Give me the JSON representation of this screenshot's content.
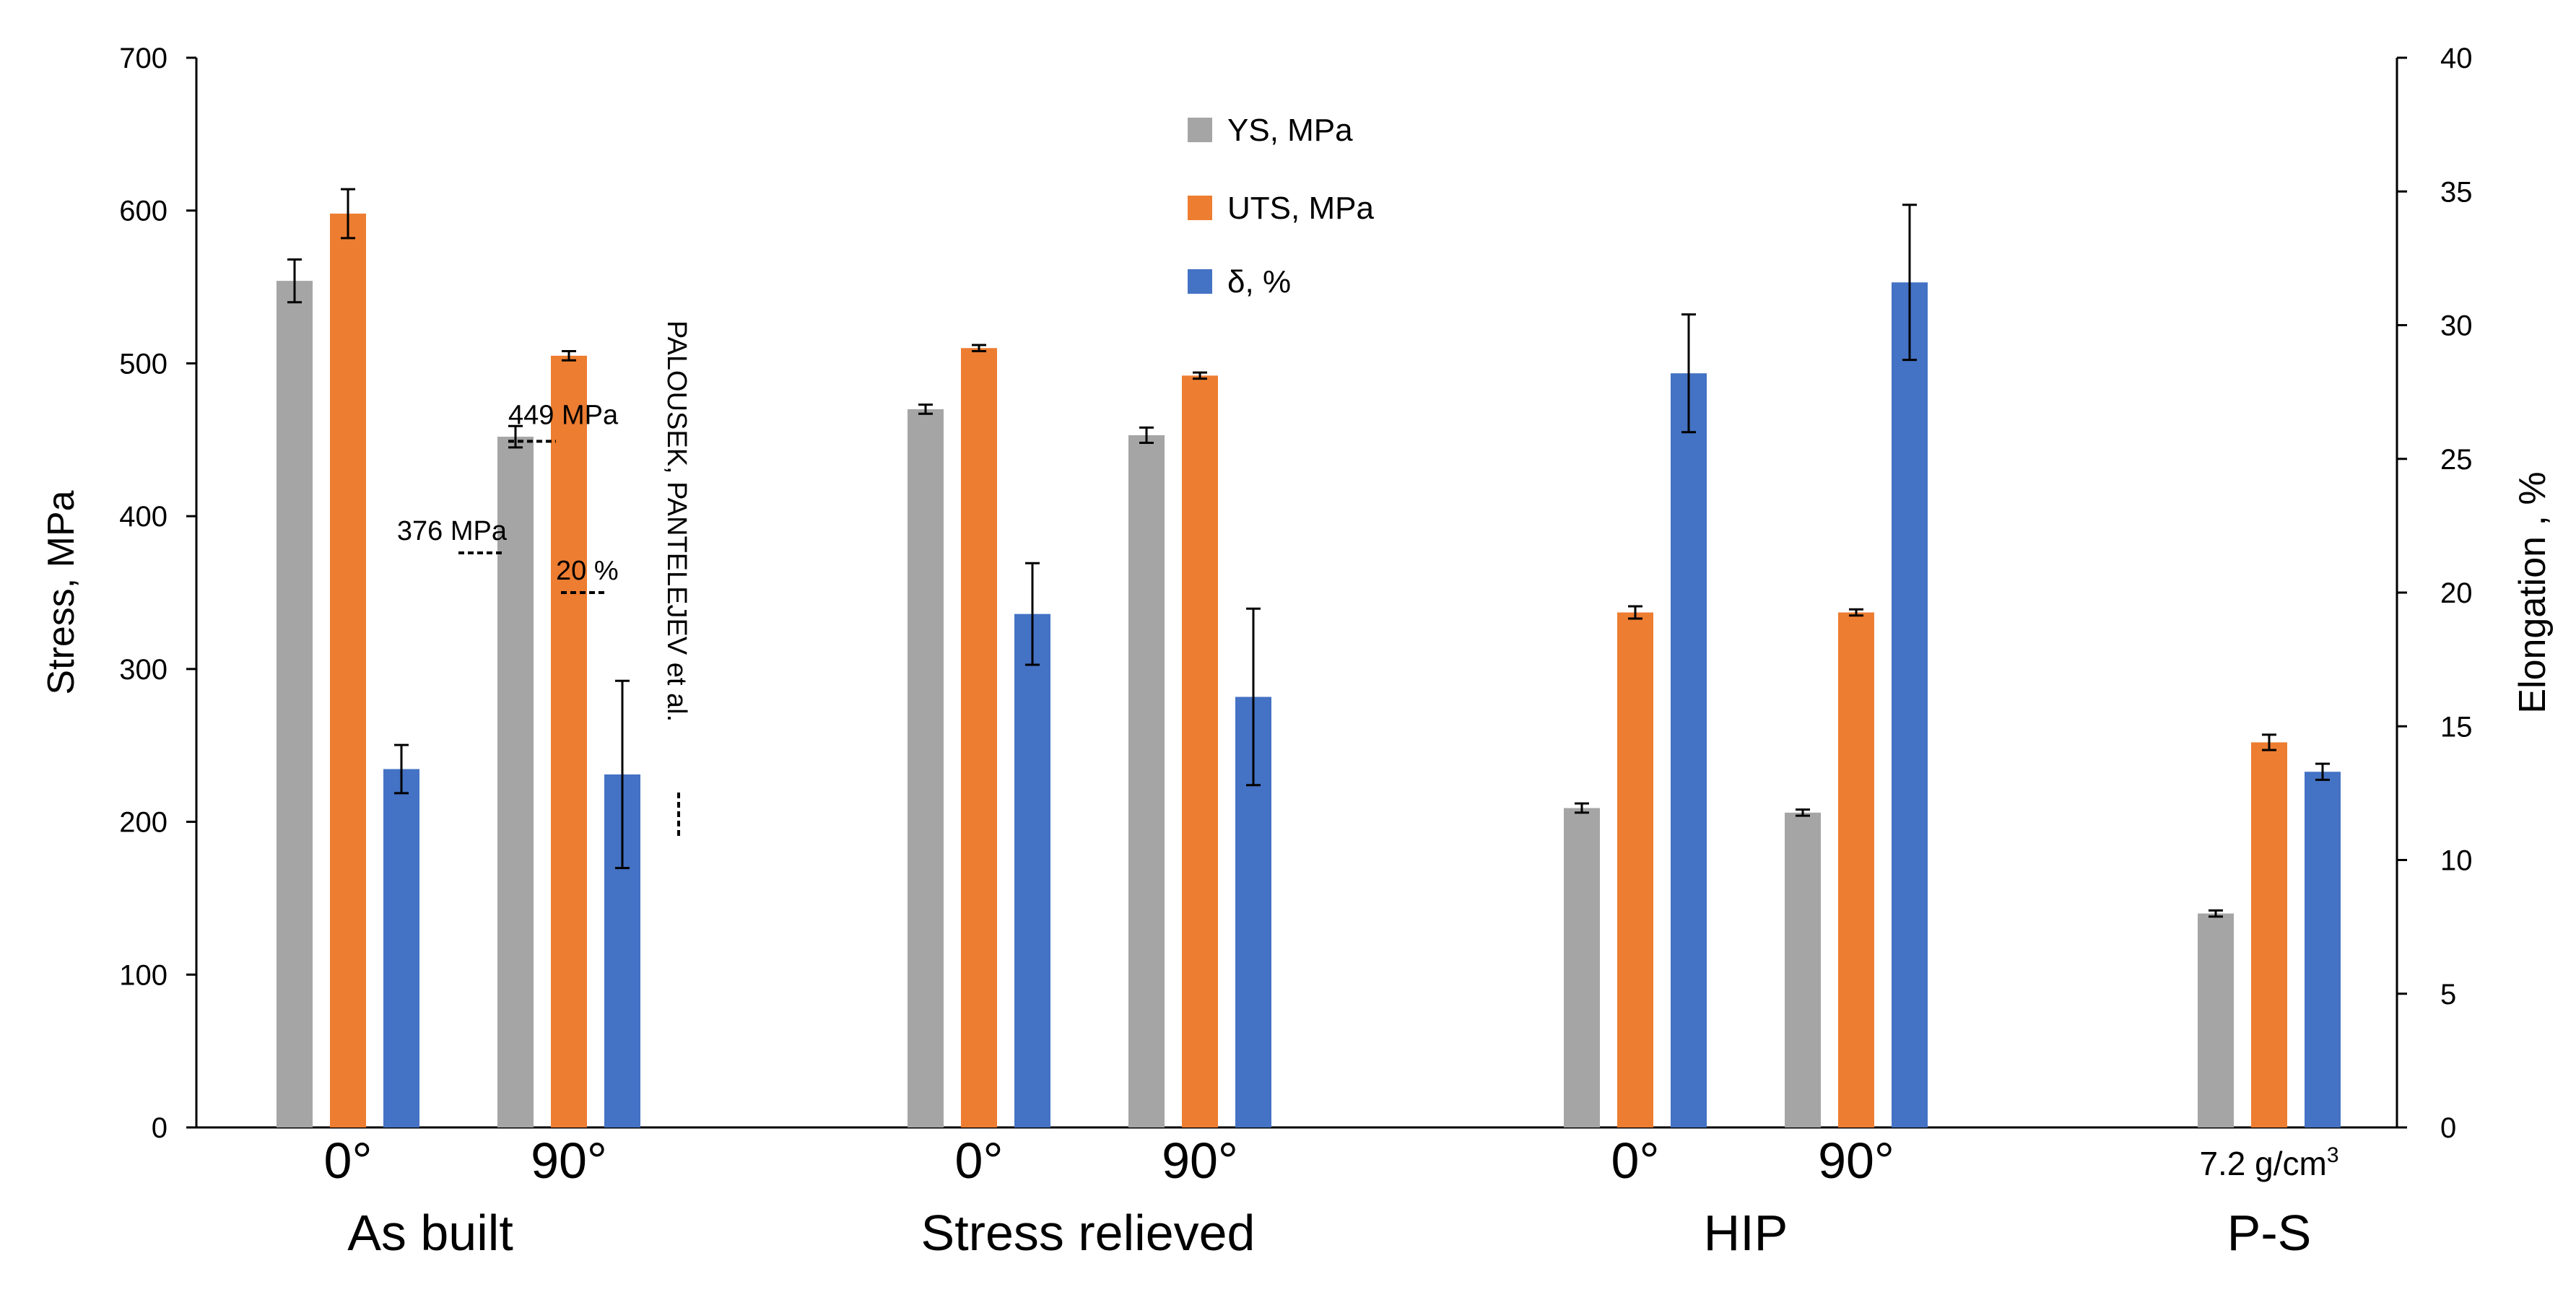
{
  "chart_data": {
    "type": "bar",
    "title": "",
    "ylabel": "Stress, MPa",
    "y2label": "Elongation , %",
    "ylim": [
      0,
      700
    ],
    "y2lim": [
      0,
      40
    ],
    "yticks": [
      "0",
      "100",
      "200",
      "300",
      "400",
      "500",
      "600",
      "700"
    ],
    "y2ticks": [
      "0",
      "5",
      "10",
      "15",
      "20",
      "25",
      "30",
      "35",
      "40"
    ],
    "grid": false,
    "legend_position": "top-center",
    "colors": {
      "ys": "#a5a5a5",
      "uts": "#ed7d31",
      "elong": "#4472c4"
    },
    "legend": [
      {
        "key": "ys",
        "label": "YS, MPa"
      },
      {
        "key": "uts",
        "label": "UTS, MPa"
      },
      {
        "key": "elong",
        "label": "δ, %"
      }
    ],
    "groups": [
      {
        "label": "As built",
        "subgroups": [
          {
            "label": "0°",
            "ys": 554,
            "ys_err": 14,
            "uts": 598,
            "uts_err": 16,
            "elong": 13.4,
            "elong_err": 0.9
          },
          {
            "label": "90°",
            "ys": 452,
            "ys_err": 7,
            "uts": 505,
            "uts_err": 3,
            "elong": 13.2,
            "elong_err": 3.5
          }
        ]
      },
      {
        "label": "Stress relieved",
        "subgroups": [
          {
            "label": "0°",
            "ys": 470,
            "ys_err": 3,
            "uts": 510,
            "uts_err": 2,
            "elong": 19.2,
            "elong_err": 1.9
          },
          {
            "label": "90°",
            "ys": 453,
            "ys_err": 5,
            "uts": 492,
            "uts_err": 2,
            "elong": 16.1,
            "elong_err": 3.3
          }
        ]
      },
      {
        "label": "HIP",
        "subgroups": [
          {
            "label": "0°",
            "ys": 209,
            "ys_err": 3,
            "uts": 337,
            "uts_err": 4,
            "elong": 28.2,
            "elong_err": 2.2
          },
          {
            "label": "90°",
            "ys": 206,
            "ys_err": 2,
            "uts": 337,
            "uts_err": 2,
            "elong": 31.6,
            "elong_err": 2.9
          }
        ]
      },
      {
        "label": "P-S",
        "subgroups": [
          {
            "label": "7.2 g/cm",
            "label_sup": "3",
            "ys": 140,
            "ys_err": 2,
            "uts": 252,
            "uts_err": 5,
            "elong": 13.3,
            "elong_err": 0.3
          }
        ]
      }
    ],
    "reference": {
      "label": "PALOUSEK, PANTELEJEV et al.",
      "lines": [
        {
          "text": "449 MPa",
          "value": 449,
          "axis": "left"
        },
        {
          "text": "376 MPa",
          "value": 376,
          "axis": "left"
        },
        {
          "text": "20 %",
          "value": 20,
          "axis": "right"
        }
      ]
    }
  }
}
